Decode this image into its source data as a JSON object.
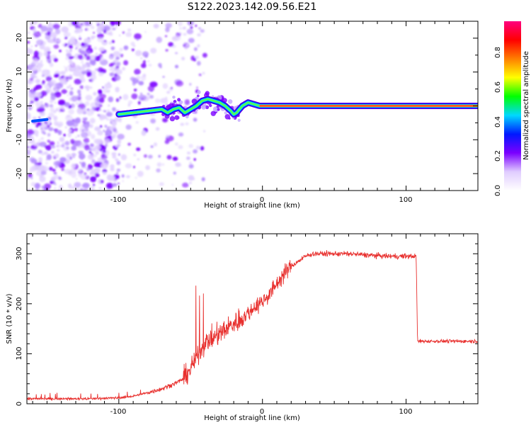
{
  "title": "S122.2023.142.09.56.E21",
  "colorbar": {
    "label": "Normalized spectral amplitude",
    "ticks": [
      "0.0",
      "0.2",
      "0.4",
      "0.6",
      "0.8"
    ],
    "colors": [
      "#ffffff",
      "#e0ccff",
      "#7b00ff",
      "#0018ff",
      "#00d8ff",
      "#00ff00",
      "#ffff00",
      "#ff7f00",
      "#ff0000",
      "#ff007f"
    ]
  },
  "chart_data": [
    {
      "type": "heatmap",
      "xlabel": "Height of straight line (km)",
      "ylabel": "Frequency (Hz)",
      "xlim": [
        -164,
        150
      ],
      "ylim": [
        -25,
        25
      ],
      "xticks": [
        "-100",
        "0",
        "100"
      ],
      "yticks": [
        "-20",
        "-10",
        "0",
        "10",
        "20"
      ],
      "ridge": {
        "x": [
          -100,
          -90,
          -80,
          -70,
          -66,
          -62,
          -58,
          -54,
          -50,
          -46,
          -42,
          -38,
          -34,
          -30,
          -26,
          -22,
          -20,
          -18,
          -14,
          -10,
          -6,
          -2,
          0,
          20,
          60,
          100,
          150
        ],
        "y": [
          -2.5,
          -2,
          -1.5,
          -1,
          -2,
          -1,
          -0.5,
          -2,
          -1,
          0,
          1.5,
          2,
          1.5,
          1,
          0,
          -1.5,
          -2.5,
          -2,
          0,
          1,
          0.5,
          0,
          0,
          0,
          0,
          0,
          0
        ]
      }
    },
    {
      "type": "line",
      "xlabel": "Height of straight line (km)",
      "ylabel": "SNR (10 * v/v)",
      "xlim": [
        -164,
        150
      ],
      "ylim": [
        0,
        340
      ],
      "xticks": [
        "-100",
        "0",
        "100"
      ],
      "yticks": [
        "0",
        "100",
        "200",
        "300"
      ],
      "color": "#e8302e",
      "series": [
        {
          "x": [
            -164,
            -140,
            -120,
            -100,
            -90,
            -80,
            -70,
            -60,
            -55,
            -50,
            -45,
            -40,
            -35,
            -30,
            -25,
            -20,
            -15,
            -10,
            -5,
            0,
            5,
            10,
            15,
            20,
            25,
            30,
            35,
            40,
            50,
            60,
            70,
            80,
            90,
            100,
            107,
            108,
            110,
            120,
            130,
            140,
            150
          ],
          "y": [
            10,
            10,
            10,
            12,
            15,
            22,
            30,
            42,
            50,
            70,
            100,
            120,
            130,
            140,
            150,
            160,
            170,
            180,
            195,
            205,
            220,
            240,
            260,
            275,
            285,
            295,
            300,
            300,
            300,
            300,
            298,
            296,
            295,
            295,
            295,
            125,
            125,
            125,
            125,
            125,
            125
          ]
        }
      ]
    }
  ]
}
